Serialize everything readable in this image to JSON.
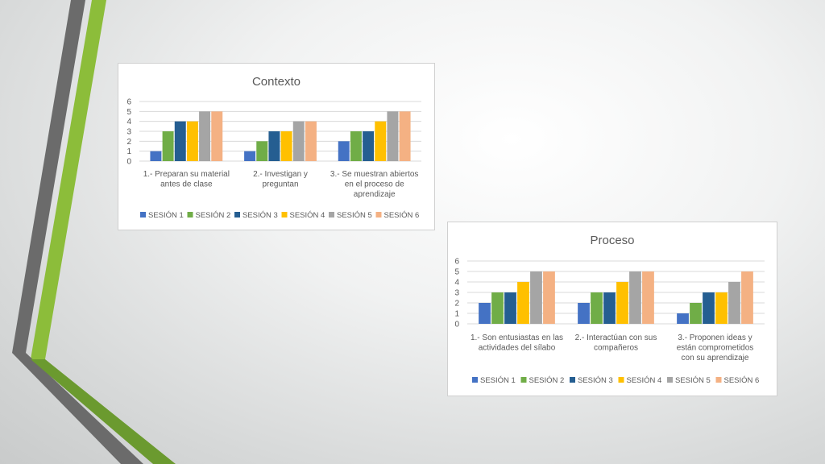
{
  "colors": {
    "series": [
      "#4472C4",
      "#70AD47",
      "#255E91",
      "#FFC000",
      "#A5A5A5",
      "#F4B183"
    ],
    "grid": "#d9d9d9",
    "text": "#595959",
    "deco_gray": "#6b6b6b",
    "deco_green": "#8cbd3a"
  },
  "chart_data": [
    {
      "type": "bar",
      "title": "Contexto",
      "categories": [
        "1.- Preparan su material antes de clase",
        "2.- Investigan y preguntan",
        "3.- Se muestran abiertos en el proceso de aprendizaje"
      ],
      "category_lines": [
        [
          "1.- Preparan su material",
          "antes de clase"
        ],
        [
          "2.- Investigan y",
          "preguntan"
        ],
        [
          "3.- Se muestran abiertos",
          "en el proceso de",
          "aprendizaje"
        ]
      ],
      "series": [
        {
          "name": "SESIÓN 1",
          "values": [
            1,
            1,
            2
          ]
        },
        {
          "name": "SESIÓN 2",
          "values": [
            3,
            2,
            3
          ]
        },
        {
          "name": "SESIÓN 3",
          "values": [
            4,
            3,
            3
          ]
        },
        {
          "name": "SESIÓN 4",
          "values": [
            4,
            3,
            4
          ]
        },
        {
          "name": "SESIÓN 5",
          "values": [
            5,
            4,
            5
          ]
        },
        {
          "name": "SESIÓN 6",
          "values": [
            5,
            4,
            5
          ]
        }
      ],
      "ylim": [
        0,
        6
      ],
      "yticks": [
        "0",
        "1",
        "2",
        "3",
        "4",
        "5",
        "6"
      ],
      "grid": true,
      "legend": "bottom"
    },
    {
      "type": "bar",
      "title": "Proceso",
      "categories": [
        "1.- Son entusiastas en las actividades del sílabo",
        "2.- Interactúan con sus compañeros",
        "3.- Proponen ideas y están comprometidos con su aprendizaje"
      ],
      "category_lines": [
        [
          "1.- Son entusiastas en las",
          "actividades del sílabo"
        ],
        [
          "2.- Interactúan con sus",
          "compañeros"
        ],
        [
          "3.- Proponen ideas  y",
          "están comprometidos",
          "con su aprendizaje"
        ]
      ],
      "series": [
        {
          "name": "SESIÓN 1",
          "values": [
            2,
            2,
            1
          ]
        },
        {
          "name": "SESIÓN 2",
          "values": [
            3,
            3,
            2
          ]
        },
        {
          "name": "SESIÓN 3",
          "values": [
            3,
            3,
            3
          ]
        },
        {
          "name": "SESIÓN 4",
          "values": [
            4,
            4,
            3
          ]
        },
        {
          "name": "SESIÓN 5",
          "values": [
            5,
            5,
            4
          ]
        },
        {
          "name": "SESIÓN 6",
          "values": [
            5,
            5,
            5
          ]
        }
      ],
      "ylim": [
        0,
        6
      ],
      "yticks": [
        "0",
        "1",
        "2",
        "3",
        "4",
        "5",
        "6"
      ],
      "grid": true,
      "legend": "bottom"
    }
  ]
}
